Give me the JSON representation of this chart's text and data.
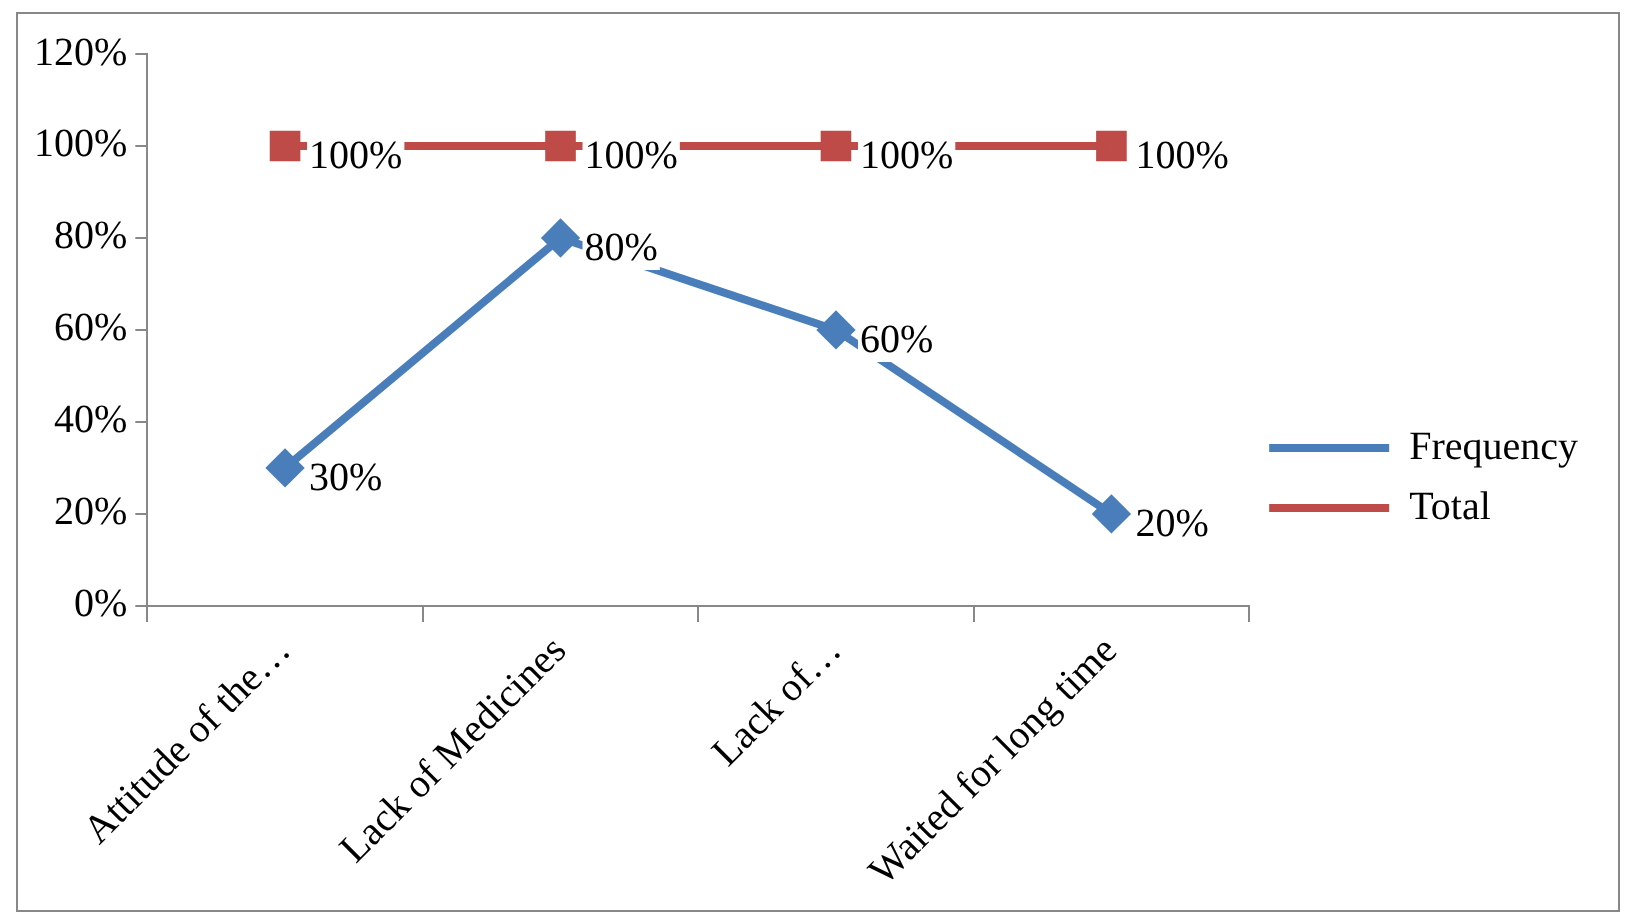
{
  "chart_data": {
    "type": "line",
    "categories": [
      "Attitude of the…",
      "Lack of Medicines",
      "Lack of…",
      "Waited for long time"
    ],
    "series": [
      {
        "name": "Frequency",
        "color": "#4a7ebb",
        "marker": "diamond",
        "values": [
          30,
          80,
          60,
          20
        ],
        "value_labels": [
          "30%",
          "80%",
          "60%",
          "20%"
        ]
      },
      {
        "name": "Total",
        "color": "#be4b48",
        "marker": "square",
        "values": [
          100,
          100,
          100,
          100
        ],
        "value_labels": [
          "100%",
          "100%",
          "100%",
          "100%"
        ]
      }
    ],
    "ylim": [
      0,
      120
    ],
    "yticks": [
      {
        "value": 0,
        "label": "0%"
      },
      {
        "value": 20,
        "label": "20%"
      },
      {
        "value": 40,
        "label": "40%"
      },
      {
        "value": 60,
        "label": "60%"
      },
      {
        "value": 80,
        "label": "80%"
      },
      {
        "value": 100,
        "label": "100%"
      },
      {
        "value": 120,
        "label": "120%"
      }
    ],
    "grid": false,
    "legend": "right",
    "line_style": "solid"
  }
}
